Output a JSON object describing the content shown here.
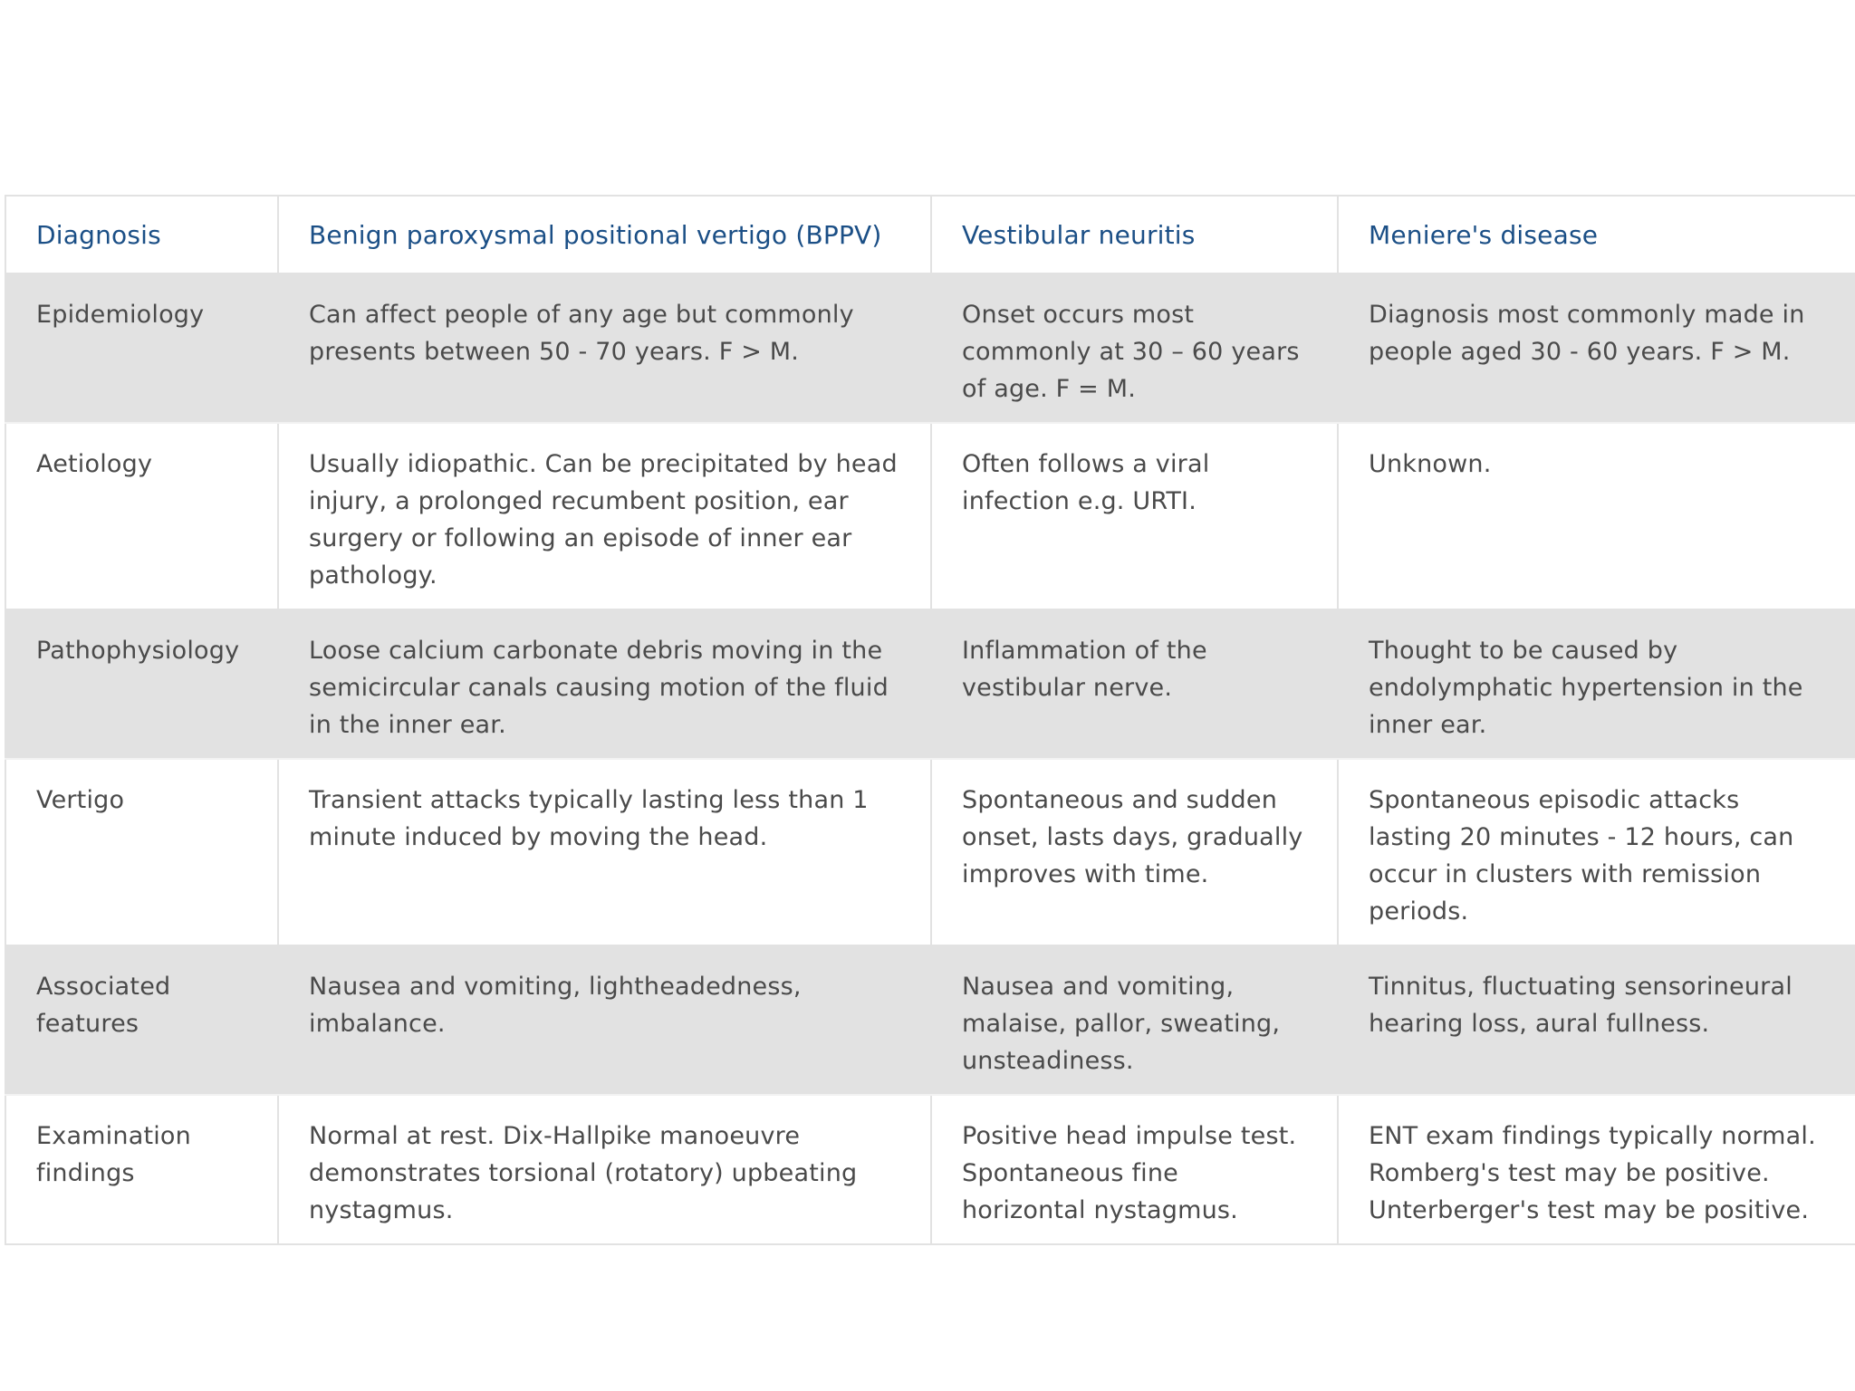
{
  "table": {
    "headers": [
      "Diagnosis",
      "Benign paroxysmal positional vertigo (BPPV)",
      "Vestibular neuritis",
      "Meniere's disease"
    ],
    "rows": [
      {
        "label": "Epidemiology",
        "cells": [
          "Can affect people of any age but commonly presents between 50 - 70 years. F > M.",
          "Onset occurs most commonly at 30 – 60 years of age. F = M.",
          "Diagnosis most commonly made in people aged 30 - 60 years. F > M."
        ]
      },
      {
        "label": "Aetiology",
        "cells": [
          "Usually idiopathic. Can be precipitated by head injury, a prolonged recumbent position, ear surgery or following an episode of inner ear pathology.",
          "Often follows a viral infection e.g. URTI.",
          "Unknown."
        ]
      },
      {
        "label": "Pathophysiology",
        "cells": [
          "Loose calcium carbonate debris moving in the semicircular canals causing motion of the fluid in the inner ear.",
          "Inflammation of the vestibular nerve.",
          "Thought to be caused by endolymphatic hypertension in the inner ear."
        ]
      },
      {
        "label": "Vertigo",
        "cells": [
          "Transient attacks typically lasting less than 1 minute induced by moving the head.",
          "Spontaneous and sudden onset, lasts days, gradually improves with time.",
          "Spontaneous episodic attacks lasting 20 minutes - 12 hours, can occur in clusters with remission periods."
        ]
      },
      {
        "label": "Associated features",
        "cells": [
          "Nausea and vomiting, lightheadedness, imbalance.",
          "Nausea and vomiting, malaise, pallor, sweating, unsteadiness.",
          "Tinnitus, fluctuating sensorineural hearing loss, aural fullness."
        ]
      },
      {
        "label": "Examination findings",
        "cells": [
          "Normal at rest. Dix-Hallpike manoeuvre demonstrates torsional (rotatory) upbeating nystagmus.",
          "Positive head impulse test. Spontaneous fine horizontal nystagmus.",
          "ENT exam findings typically normal. Romberg's test may be positive. Unterberger's test may be positive."
        ]
      }
    ]
  }
}
